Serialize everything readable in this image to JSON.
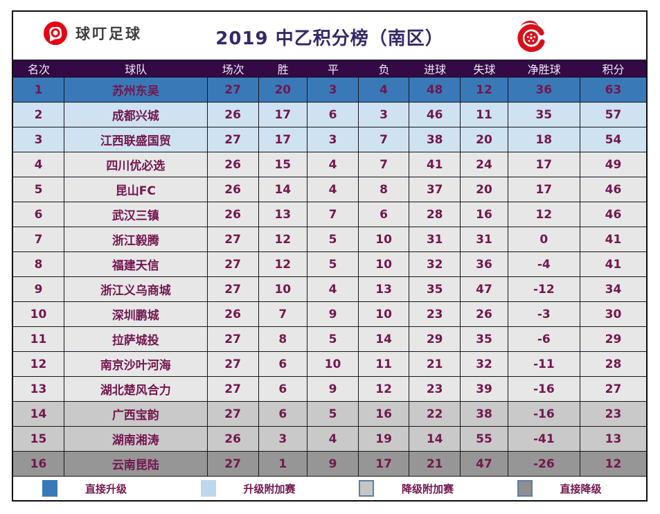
{
  "header": {
    "brand_name": "球叮足球",
    "brand_icon": "qiuding-football-logo",
    "title": "2019 中乙积分榜（南区）",
    "league_icon": "china-league-two-logo"
  },
  "colors": {
    "brand_red": "#e60012",
    "league_logo_red": "#d8101c",
    "title_purple": "#372868",
    "header_band_bg": "#330a45",
    "header_band_text": "#f0e8f6",
    "cell_text_maroon": "#73164e",
    "grid_border": "#15151f"
  },
  "chart_data": {
    "type": "table",
    "title": "2019 中乙积分榜（南区）",
    "columns": [
      "名次",
      "球队",
      "场次",
      "胜",
      "平",
      "负",
      "进球",
      "失球",
      "净胜球",
      "积分"
    ],
    "rows": [
      [
        1,
        "苏州东吴",
        27,
        20,
        3,
        4,
        48,
        12,
        36,
        63
      ],
      [
        2,
        "成都兴城",
        26,
        17,
        6,
        3,
        46,
        11,
        35,
        57
      ],
      [
        3,
        "江西联盛国贸",
        27,
        17,
        3,
        7,
        38,
        20,
        18,
        54
      ],
      [
        4,
        "四川优必选",
        26,
        15,
        4,
        7,
        41,
        24,
        17,
        49
      ],
      [
        5,
        "昆山FC",
        26,
        14,
        4,
        8,
        37,
        20,
        17,
        46
      ],
      [
        6,
        "武汉三镇",
        26,
        13,
        7,
        6,
        28,
        16,
        12,
        46
      ],
      [
        7,
        "浙江毅腾",
        27,
        12,
        5,
        10,
        31,
        31,
        0,
        41
      ],
      [
        8,
        "福建天信",
        27,
        12,
        5,
        10,
        32,
        36,
        -4,
        41
      ],
      [
        9,
        "浙江义乌商城",
        27,
        10,
        4,
        13,
        35,
        47,
        -12,
        34
      ],
      [
        10,
        "深圳鹏城",
        26,
        7,
        9,
        10,
        23,
        26,
        -3,
        30
      ],
      [
        11,
        "拉萨城投",
        27,
        8,
        5,
        14,
        29,
        35,
        -6,
        29
      ],
      [
        12,
        "南京沙叶河海",
        27,
        6,
        10,
        11,
        21,
        32,
        -11,
        28
      ],
      [
        13,
        "湖北楚风合力",
        27,
        6,
        9,
        12,
        23,
        39,
        -16,
        27
      ],
      [
        14,
        "广西宝韵",
        27,
        6,
        5,
        16,
        22,
        38,
        -16,
        23
      ],
      [
        15,
        "湖南湘涛",
        26,
        3,
        4,
        19,
        14,
        55,
        -41,
        13
      ],
      [
        16,
        "云南昆陆",
        27,
        1,
        9,
        17,
        21,
        47,
        -26,
        12
      ]
    ],
    "row_zones": [
      "direct-promotion",
      "promotion-playoff",
      "promotion-playoff",
      "safe",
      "safe",
      "safe",
      "safe",
      "safe",
      "safe",
      "safe",
      "safe",
      "safe",
      "safe",
      "relegation-playoff",
      "relegation-playoff",
      "direct-relegation"
    ],
    "zones": {
      "direct-promotion": {
        "bg": "#3a79b8"
      },
      "promotion-playoff": {
        "bg": "#cfe2f1"
      },
      "safe": {
        "bg": "#e7e7e7"
      },
      "relegation-playoff": {
        "bg": "#c9c9c9"
      },
      "direct-relegation": {
        "bg": "#969696"
      }
    },
    "legend": [
      {
        "label": "直接升级",
        "color": "#3a79b8",
        "border": "none"
      },
      {
        "label": "升级附加赛",
        "color": "#bdd7ee",
        "border": "none"
      },
      {
        "label": "降级附加赛",
        "color": "#c6c6c6",
        "border": "#5b7fa6"
      },
      {
        "label": "直接降级",
        "color": "#8f8f8f",
        "border": "#5b7fa6"
      }
    ],
    "legend_position": "bottom",
    "grid": "on"
  }
}
